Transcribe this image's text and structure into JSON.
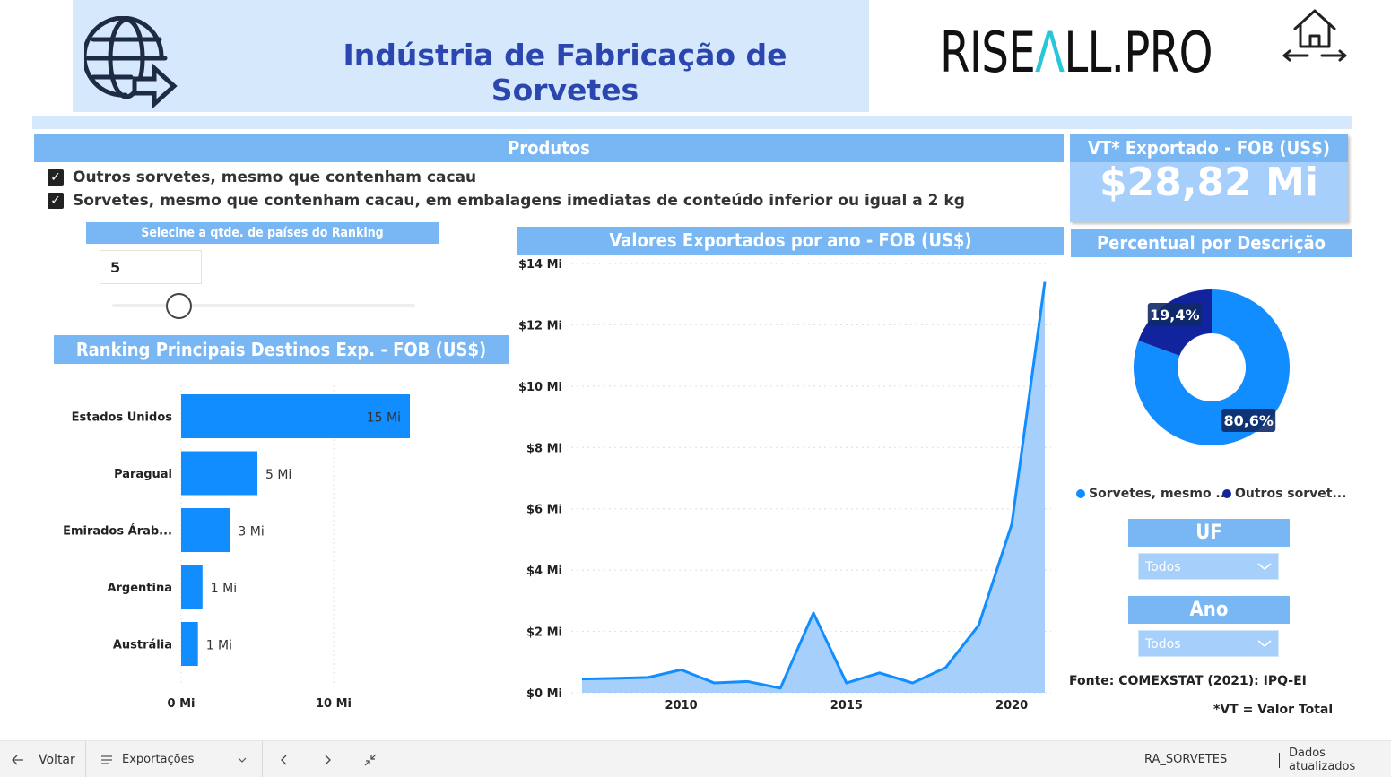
{
  "header": {
    "title": "Indústria de Fabricação de Sorvetes",
    "logo_text_before": "RISE",
    "logo_text_accent": "Λ",
    "logo_text_after": "LL.PRO"
  },
  "products": {
    "title": "Produtos",
    "items": [
      {
        "label": "Outros sorvetes, mesmo que contenham cacau",
        "checked": true
      },
      {
        "label": "Sorvetes, mesmo que contenham cacau, em embalagens imediatas de conteúdo inferior ou igual a 2 kg",
        "checked": true
      }
    ]
  },
  "slider": {
    "title": "Selecine a qtde. de países do Ranking",
    "value": "5"
  },
  "ranking": {
    "title": "Ranking Principais Destinos Exp. - FOB (US$)"
  },
  "line_chart": {
    "title": "Valores Exportados por ano - FOB (US$)"
  },
  "kpi": {
    "label": "VT* Exportado - FOB (US$)",
    "value": "$28,82 Mi"
  },
  "percent": {
    "title": "Percentual por Descrição"
  },
  "filters": {
    "uf_title": "UF",
    "uf_value": "Todos",
    "ano_title": "Ano",
    "ano_value": "Todos"
  },
  "footer_notes": {
    "source": "Fonte: COMEXSTAT (2021): IPQ-EI",
    "vt_note": "*VT = Valor Total"
  },
  "bottom_bar": {
    "back_label": "Voltar",
    "page_label": "Exportações",
    "report_name": "RA_SORVETES",
    "status": "Dados atualizados"
  },
  "colors": {
    "title_blue": "#2c46b0",
    "bar_header": "#78b6f4",
    "bar_fill": "#118dff",
    "dark_navy": "#12239e",
    "area_fill": "#a6d0fb"
  },
  "chart_data": [
    {
      "type": "bar",
      "orientation": "horizontal",
      "categories": [
        "Estados Unidos",
        "Paraguai",
        "Emirados Árab...",
        "Argentina",
        "Austrália"
      ],
      "values": [
        15,
        5,
        3.2,
        1.4,
        1.1
      ],
      "data_labels": [
        "15 Mi",
        "5 Mi",
        "3 Mi",
        "1 Mi",
        "1 Mi"
      ],
      "x_ticks": [
        "0 Mi",
        "10 Mi"
      ],
      "xlim": [
        0,
        20
      ],
      "grid": true
    },
    {
      "type": "area",
      "x": [
        2007,
        2008,
        2009,
        2010,
        2011,
        2012,
        2013,
        2014,
        2015,
        2016,
        2017,
        2018,
        2019,
        2020,
        2021
      ],
      "values": [
        0.45,
        0.47,
        0.5,
        0.75,
        0.32,
        0.37,
        0.15,
        2.6,
        0.32,
        0.65,
        0.32,
        0.82,
        2.2,
        5.5,
        13.4
      ],
      "y_ticks": [
        "$0 Mi",
        "$2 Mi",
        "$4 Mi",
        "$6 Mi",
        "$8 Mi",
        "$10 Mi",
        "$12 Mi",
        "$14 Mi"
      ],
      "x_ticks": [
        "2010",
        "2015",
        "2020"
      ],
      "ylim": [
        0,
        14
      ],
      "grid": true
    },
    {
      "type": "pie",
      "donut": true,
      "series": [
        {
          "name": "Sorvetes, mesmo ...",
          "value": 80.6,
          "label": "80,6%",
          "color": "#118dff"
        },
        {
          "name": "Outros sorvet...",
          "value": 19.4,
          "label": "19,4%",
          "color": "#12239e"
        }
      ],
      "legend": "bottom"
    }
  ]
}
